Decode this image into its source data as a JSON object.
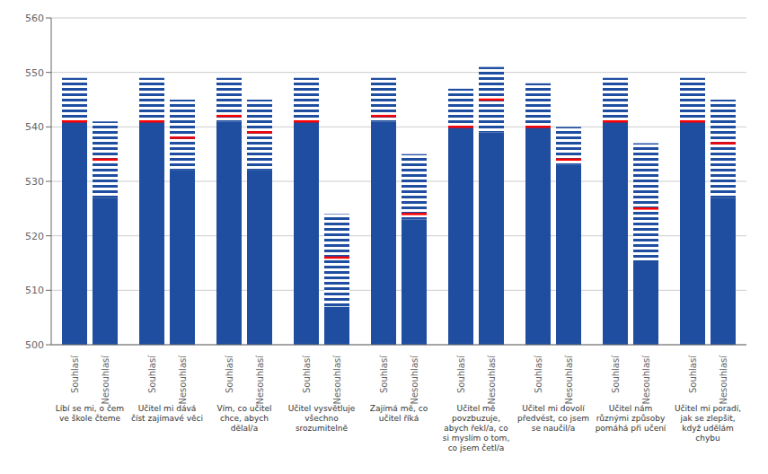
{
  "chart_data": {
    "type": "bar",
    "categories": [
      "Líbí se mi, o čem\nve škole čteme",
      "Učitel mi dává\nčíst zajímavé věci",
      "Vím, co učitel\nchce, abych\ndělal/a",
      "Učitel vysvětluje\nvšechno\nsrozumitelně",
      "Zajímá mě, co\nučitel říká",
      "Učitel mě\npovzbuzuje,\nabych řekl/a, co\nsi myslím o tom,\nco jsem četl/a",
      "Učitel mi dovolí\npředvést, co jsem\nse naučil/a",
      "Učitel nám\nrůznými způsoby\npomáhá při učení",
      "Učitel mi poradí,\njak se zlepšit,\nkdyž udělám\nchybu"
    ],
    "series": [
      {
        "name": "Souhlasí",
        "color": "#1f4ea1",
        "values": [
          541,
          541,
          542,
          541,
          542,
          540,
          540,
          541,
          541
        ],
        "ci_low": [
          541,
          541,
          541,
          541,
          541,
          540,
          540,
          541,
          541
        ],
        "ci_high": [
          549,
          549,
          549,
          549,
          549,
          547,
          548,
          549,
          549
        ]
      },
      {
        "name": "Nesouhlasí",
        "color": "#1f4ea1",
        "values": [
          534,
          538,
          539,
          516,
          524,
          545,
          534,
          525,
          537
        ],
        "ci_low": [
          527,
          532,
          532,
          507,
          523,
          539,
          533,
          515,
          527
        ],
        "ci_high": [
          541,
          545,
          545,
          524,
          535,
          551,
          540,
          537,
          545
        ]
      }
    ],
    "color": "#FF0000",
    "ylim": [
      500,
      560
    ],
    "yticks": [
      500,
      510,
      520,
      530,
      540,
      550,
      560
    ],
    "grid": true
  }
}
